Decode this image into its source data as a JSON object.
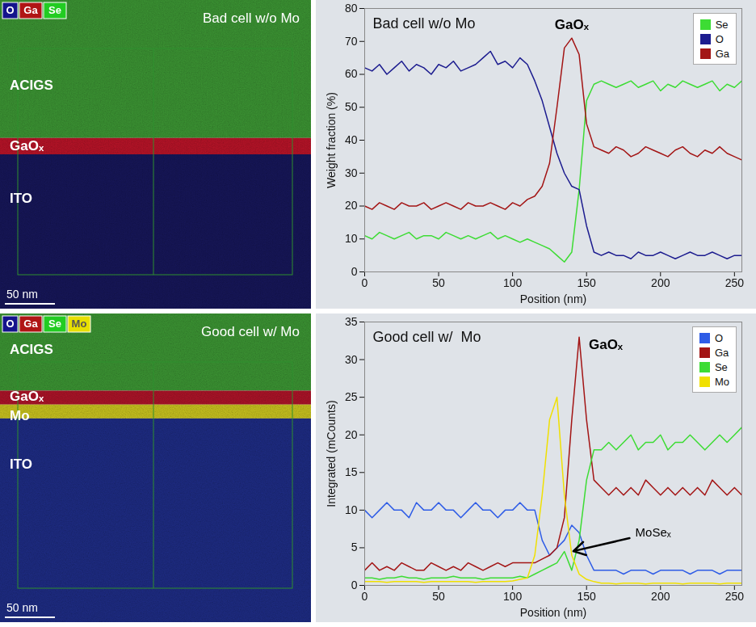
{
  "maps": [
    {
      "title": "Bad cell w/o Mo",
      "channels": [
        {
          "name": "O",
          "color": "#14148c"
        },
        {
          "name": "Ga",
          "color": "#b01515"
        },
        {
          "name": "Se",
          "color": "#22cc22"
        }
      ],
      "layers": [
        {
          "label": "ACIGS",
          "color": "#3f9e36"
        },
        {
          "label": "GaOₓ",
          "color": "#c4142a"
        },
        {
          "label": "ITO",
          "color": "#17175e"
        }
      ],
      "scale_bar": "50 nm"
    },
    {
      "title": "Good cell w/  Mo",
      "channels": [
        {
          "name": "O",
          "color": "#14148c"
        },
        {
          "name": "Ga",
          "color": "#b01515"
        },
        {
          "name": "Se",
          "color": "#22cc22"
        },
        {
          "name": "Mo",
          "color": "#e8e000"
        }
      ],
      "layers": [
        {
          "label": "ACIGS",
          "color": "#3f9e36"
        },
        {
          "label": "GaOₓ",
          "color": "#b8142a"
        },
        {
          "label": "Mo",
          "color": "#d6d020"
        },
        {
          "label": "ITO",
          "color": "#1f2e8c"
        }
      ],
      "scale_bar": "50 nm"
    }
  ],
  "chart_data": [
    {
      "type": "line",
      "title": "Bad cell w/o Mo",
      "x_label": "Position (nm)",
      "y_label": "Weight fraction (%)",
      "xlim": [
        0,
        255
      ],
      "xticks": [
        0,
        50,
        100,
        150,
        200,
        250
      ],
      "ylim": [
        0,
        80
      ],
      "yticks": [
        0,
        10,
        20,
        30,
        40,
        50,
        60,
        70,
        80
      ],
      "grid": false,
      "legend": "top-right",
      "annotations": [
        {
          "text": "GaOₓ",
          "x": 140,
          "y": 75
        }
      ],
      "x": [
        0,
        5,
        10,
        15,
        20,
        25,
        30,
        35,
        40,
        45,
        50,
        55,
        60,
        65,
        70,
        75,
        80,
        85,
        90,
        95,
        100,
        105,
        110,
        115,
        120,
        125,
        130,
        135,
        140,
        145,
        150,
        155,
        160,
        165,
        170,
        175,
        180,
        185,
        190,
        195,
        200,
        205,
        210,
        215,
        220,
        225,
        230,
        235,
        240,
        245,
        250,
        255
      ],
      "series": [
        {
          "name": "Se",
          "color": "#3ddc34",
          "values": [
            11,
            10,
            12,
            11,
            10,
            11,
            12,
            10,
            11,
            11,
            10,
            12,
            11,
            10,
            11,
            10,
            11,
            12,
            10,
            11,
            10,
            9,
            10,
            9,
            8,
            7,
            5,
            3,
            6,
            25,
            52,
            57,
            58,
            57,
            56,
            57,
            58,
            56,
            57,
            58,
            55,
            57,
            56,
            58,
            57,
            56,
            57,
            58,
            55,
            57,
            56,
            58
          ]
        },
        {
          "name": "O",
          "color": "#1c1c8f",
          "values": [
            62,
            61,
            63,
            60,
            62,
            64,
            61,
            63,
            62,
            60,
            63,
            62,
            64,
            61,
            62,
            63,
            65,
            67,
            63,
            64,
            62,
            65,
            63,
            58,
            52,
            44,
            36,
            30,
            26,
            25,
            14,
            6,
            5,
            6,
            5,
            5,
            4,
            6,
            5,
            5,
            6,
            5,
            4,
            5,
            6,
            5,
            5,
            6,
            5,
            4,
            5,
            5
          ]
        },
        {
          "name": "Ga",
          "color": "#a31515",
          "values": [
            20,
            19,
            21,
            20,
            19,
            21,
            20,
            20,
            21,
            19,
            20,
            21,
            20,
            19,
            21,
            20,
            20,
            21,
            20,
            19,
            21,
            20,
            22,
            23,
            26,
            33,
            50,
            68,
            71,
            66,
            45,
            38,
            37,
            36,
            38,
            37,
            35,
            36,
            38,
            37,
            36,
            35,
            37,
            38,
            36,
            35,
            37,
            36,
            38,
            36,
            35,
            34
          ]
        }
      ]
    },
    {
      "type": "line",
      "title": "Good cell w/  Mo",
      "x_label": "Position (nm)",
      "y_label": "Integrated (mCounts)",
      "xlim": [
        0,
        255
      ],
      "xticks": [
        0,
        50,
        100,
        150,
        200,
        250
      ],
      "ylim": [
        0,
        35
      ],
      "yticks": [
        0,
        5,
        10,
        15,
        20,
        25,
        30,
        35
      ],
      "grid": false,
      "legend": "top-right",
      "annotations": [
        {
          "text": "GaOₓ",
          "x": 163,
          "y": 32
        },
        {
          "text": "MoSeₓ",
          "x": 195,
          "y": 7,
          "point": [
            140,
            4.5
          ]
        }
      ],
      "x": [
        0,
        5,
        10,
        15,
        20,
        25,
        30,
        35,
        40,
        45,
        50,
        55,
        60,
        65,
        70,
        75,
        80,
        85,
        90,
        95,
        100,
        105,
        110,
        115,
        120,
        125,
        130,
        135,
        140,
        145,
        150,
        155,
        160,
        165,
        170,
        175,
        180,
        185,
        190,
        195,
        200,
        205,
        210,
        215,
        220,
        225,
        230,
        235,
        240,
        245,
        250,
        255
      ],
      "series": [
        {
          "name": "O",
          "color": "#2e5ce6",
          "values": [
            10,
            9,
            10,
            11,
            10,
            10,
            9,
            11,
            10,
            10,
            11,
            10,
            10,
            9,
            10,
            11,
            10,
            10,
            9,
            10,
            10,
            11,
            10,
            10,
            6,
            4,
            5,
            6,
            8,
            7,
            4,
            2,
            2,
            2,
            2,
            1.5,
            2,
            2,
            2,
            1.5,
            2,
            2,
            2,
            2,
            1.5,
            2,
            2,
            2,
            1.5,
            2,
            2,
            2
          ]
        },
        {
          "name": "Ga",
          "color": "#a31515",
          "values": [
            2,
            3,
            2,
            2.5,
            2,
            3,
            2.5,
            2,
            2,
            3,
            2.5,
            2,
            2.5,
            2,
            3,
            2.5,
            2,
            2.5,
            3,
            2.5,
            3,
            3,
            3,
            3,
            3.5,
            4,
            5,
            9,
            22,
            33,
            22,
            14,
            13,
            12,
            13,
            12,
            13,
            12,
            14,
            13,
            12,
            13,
            12,
            13,
            12,
            13,
            12,
            14,
            13,
            12,
            13,
            12
          ]
        },
        {
          "name": "Se",
          "color": "#3ddc34",
          "values": [
            1,
            1,
            0.8,
            1,
            1,
            1.2,
            1,
            1,
            0.8,
            1,
            1,
            1,
            1.2,
            1,
            1,
            1,
            0.8,
            1,
            1,
            1,
            1,
            1.2,
            1,
            1.5,
            2,
            2.5,
            3,
            4.5,
            2,
            6,
            14,
            18,
            18,
            19,
            18,
            19,
            20,
            18,
            19,
            19,
            20,
            18,
            19,
            19,
            20,
            19,
            18,
            19,
            20,
            19,
            20,
            21
          ]
        },
        {
          "name": "Mo",
          "color": "#f0e000",
          "values": [
            0.5,
            0.5,
            0.5,
            0.4,
            0.5,
            0.5,
            0.5,
            0.5,
            0.4,
            0.5,
            0.5,
            0.5,
            0.5,
            0.5,
            0.5,
            0.4,
            0.5,
            0.5,
            0.5,
            0.5,
            0.6,
            0.8,
            1,
            4,
            12,
            22,
            25,
            12,
            4,
            1.5,
            0.8,
            0.5,
            0.3,
            0.3,
            0.2,
            0.3,
            0.3,
            0.3,
            0.2,
            0.3,
            0.3,
            0.3,
            0.3,
            0.2,
            0.3,
            0.3,
            0.3,
            0.3,
            0.2,
            0.3,
            0.3,
            0.3
          ]
        }
      ]
    }
  ]
}
